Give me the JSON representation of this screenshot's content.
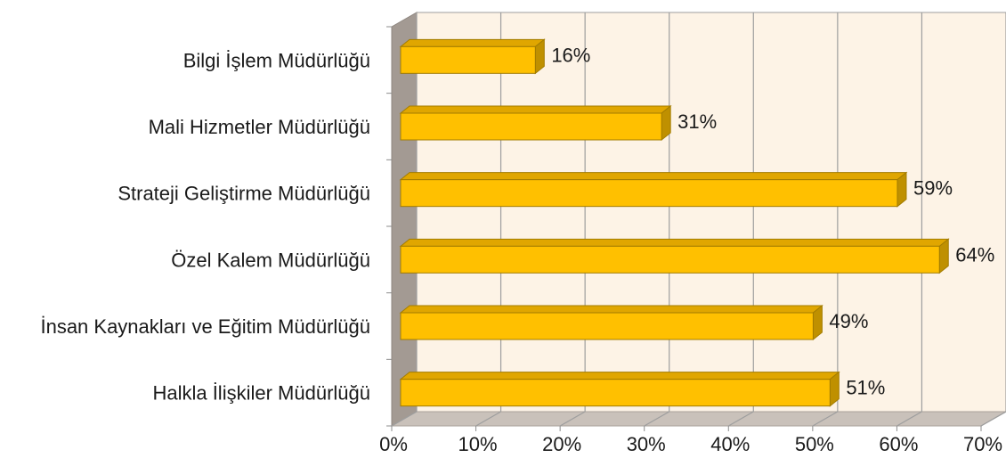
{
  "chart_data": {
    "type": "bar",
    "orientation": "horizontal",
    "style": "3d",
    "categories": [
      "Bilgi İşlem Müdürlüğü",
      "Mali Hizmetler Müdürlüğü",
      "Strateji Geliştirme Müdürlüğü",
      "Özel Kalem Müdürlüğü",
      "İnsan Kaynakları ve Eğitim Müdürlüğü",
      "Halkla İlişkiler Müdürlüğü"
    ],
    "values": [
      16,
      31,
      59,
      64,
      49,
      51
    ],
    "data_labels": [
      "16%",
      "31%",
      "59%",
      "64%",
      "49%",
      "51%"
    ],
    "xlim": [
      0,
      70
    ],
    "x_ticks": [
      "0%",
      "10%",
      "20%",
      "30%",
      "40%",
      "50%",
      "60%",
      "70%"
    ],
    "grid": true,
    "legend": "none",
    "colors": {
      "bar_front": "#FFC000",
      "bar_top": "#E0A600",
      "bar_side": "#BF9000",
      "bar_edge": "#A37C00",
      "plot_back": "#FDF3E6",
      "left_wall": "#A39A93",
      "floor": "#C9C1BA",
      "grid": "#9E9E9E"
    }
  }
}
